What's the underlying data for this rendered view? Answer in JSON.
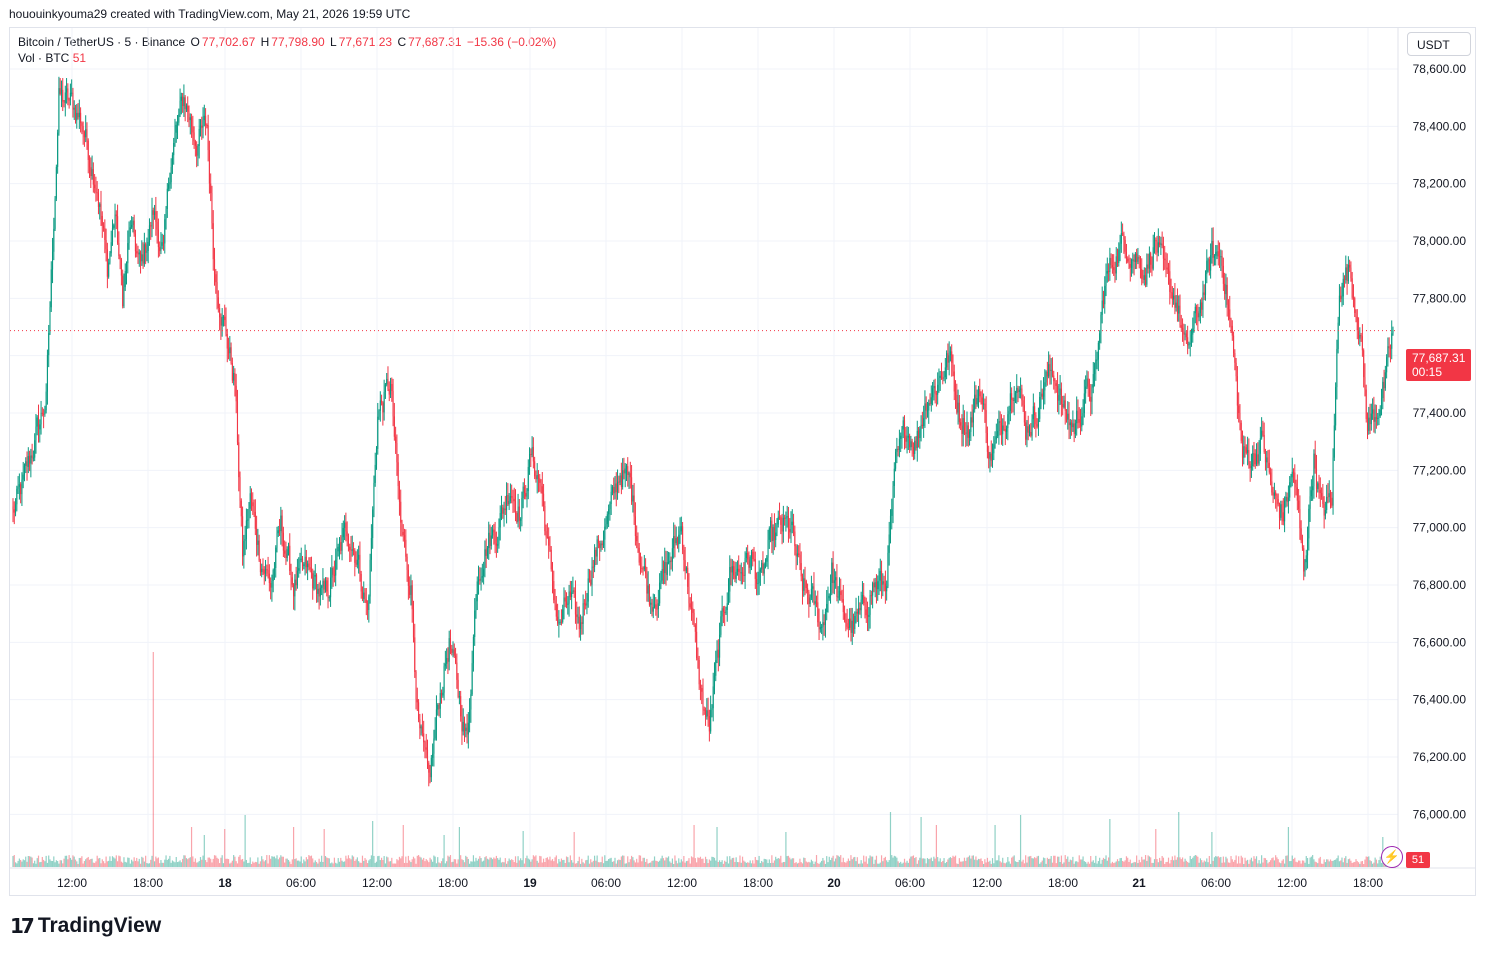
{
  "header": {
    "credit": "hououinkyouma29 created with TradingView.com, May 21, 2026 19:59 UTC"
  },
  "legend": {
    "symbol": "Bitcoin / TetherUS · 5 · Binance",
    "open_label": "O",
    "open": "77,702.67",
    "high_label": "H",
    "high": "77,798.90",
    "low_label": "L",
    "low": "77,671.23",
    "close_label": "C",
    "close": "77,687.31",
    "change": "−15.36 (−0.02%)",
    "volume_label": "Vol · BTC",
    "volume": "51"
  },
  "currency_button": "USDT",
  "last_price": {
    "value": "77,687.31",
    "countdown": "00:15",
    "volume_badge": "51"
  },
  "brand": "TradingView",
  "colors": {
    "up": "#089981",
    "down": "#f23645",
    "grid": "#f0f3fa",
    "text": "#131722"
  },
  "chart_data": {
    "type": "candlestick",
    "symbol": "BTCUSDT",
    "interval": "5",
    "ylim": [
      75900,
      78750
    ],
    "y_ticks": [
      76000,
      76200,
      76400,
      76600,
      76800,
      77000,
      77200,
      77400,
      77600,
      77800,
      78000,
      78200,
      78400,
      78600
    ],
    "y_tick_labels": [
      "76,000.00",
      "76,200.00",
      "76,400.00",
      "76,600.00",
      "76,800.00",
      "77,000.00",
      "77,200.00",
      "77,400.00",
      "77,600.00",
      "77,800.00",
      "78,000.00",
      "78,200.00",
      "78,400.00",
      "78,600.00"
    ],
    "x_tick_labels": [
      "12:00",
      "18:00",
      "18",
      "06:00",
      "12:00",
      "18:00",
      "19",
      "06:00",
      "12:00",
      "18:00",
      "20",
      "06:00",
      "12:00",
      "18:00",
      "21",
      "06:00",
      "12:00",
      "18:00"
    ],
    "bold_x_ticks": [
      "18",
      "19",
      "20",
      "21"
    ],
    "last_price": 77687.31,
    "price_path": [
      [
        0,
        77050
      ],
      [
        8,
        77150
      ],
      [
        14,
        77250
      ],
      [
        20,
        77350
      ],
      [
        26,
        77450
      ],
      [
        36,
        78500
      ],
      [
        46,
        78480
      ],
      [
        54,
        78420
      ],
      [
        60,
        78300
      ],
      [
        66,
        78200
      ],
      [
        74,
        77900
      ],
      [
        80,
        78100
      ],
      [
        86,
        77800
      ],
      [
        92,
        78050
      ],
      [
        100,
        77900
      ],
      [
        110,
        78100
      ],
      [
        118,
        77950
      ],
      [
        124,
        78300
      ],
      [
        134,
        78500
      ],
      [
        144,
        78350
      ],
      [
        152,
        78400
      ],
      [
        158,
        77900
      ],
      [
        166,
        77700
      ],
      [
        174,
        77500
      ],
      [
        180,
        76900
      ],
      [
        186,
        77100
      ],
      [
        194,
        76900
      ],
      [
        202,
        76800
      ],
      [
        210,
        77000
      ],
      [
        220,
        76800
      ],
      [
        230,
        76850
      ],
      [
        244,
        76750
      ],
      [
        252,
        76850
      ],
      [
        262,
        77000
      ],
      [
        270,
        76900
      ],
      [
        278,
        76700
      ],
      [
        286,
        77400
      ],
      [
        296,
        77500
      ],
      [
        304,
        77000
      ],
      [
        312,
        76800
      ],
      [
        318,
        76300
      ],
      [
        326,
        76100
      ],
      [
        334,
        76400
      ],
      [
        342,
        76600
      ],
      [
        350,
        76400
      ],
      [
        356,
        76250
      ],
      [
        364,
        76850
      ],
      [
        372,
        76950
      ],
      [
        380,
        77000
      ],
      [
        390,
        77150
      ],
      [
        398,
        77050
      ],
      [
        406,
        77250
      ],
      [
        414,
        77150
      ],
      [
        420,
        76900
      ],
      [
        428,
        76650
      ],
      [
        436,
        76750
      ],
      [
        444,
        76650
      ],
      [
        452,
        76850
      ],
      [
        460,
        76950
      ],
      [
        468,
        77050
      ],
      [
        476,
        77200
      ],
      [
        484,
        77150
      ],
      [
        492,
        76900
      ],
      [
        500,
        76750
      ],
      [
        508,
        76800
      ],
      [
        516,
        76900
      ],
      [
        524,
        77000
      ],
      [
        532,
        76700
      ],
      [
        540,
        76400
      ],
      [
        546,
        76300
      ],
      [
        554,
        76600
      ],
      [
        562,
        76850
      ],
      [
        570,
        76850
      ],
      [
        578,
        76900
      ],
      [
        586,
        76800
      ],
      [
        594,
        76950
      ],
      [
        602,
        77000
      ],
      [
        610,
        77000
      ],
      [
        618,
        76800
      ],
      [
        626,
        76750
      ],
      [
        634,
        76650
      ],
      [
        642,
        76850
      ],
      [
        650,
        76700
      ],
      [
        658,
        76650
      ],
      [
        666,
        76700
      ],
      [
        674,
        76800
      ],
      [
        684,
        76800
      ],
      [
        692,
        77200
      ],
      [
        700,
        77350
      ],
      [
        708,
        77300
      ],
      [
        716,
        77450
      ],
      [
        724,
        77500
      ],
      [
        734,
        77600
      ],
      [
        742,
        77400
      ],
      [
        750,
        77350
      ],
      [
        758,
        77500
      ],
      [
        766,
        77250
      ],
      [
        772,
        77300
      ],
      [
        778,
        77400
      ],
      [
        786,
        77550
      ],
      [
        794,
        77350
      ],
      [
        802,
        77400
      ],
      [
        808,
        77500
      ],
      [
        816,
        77550
      ],
      [
        824,
        77400
      ],
      [
        832,
        77350
      ],
      [
        840,
        77450
      ],
      [
        848,
        77500
      ],
      [
        856,
        77850
      ],
      [
        864,
        77950
      ],
      [
        872,
        78000
      ],
      [
        880,
        77950
      ],
      [
        888,
        77900
      ],
      [
        896,
        78000
      ],
      [
        904,
        77850
      ],
      [
        912,
        77800
      ],
      [
        920,
        77600
      ],
      [
        926,
        77700
      ],
      [
        932,
        77800
      ],
      [
        940,
        77950
      ],
      [
        948,
        77950
      ],
      [
        956,
        77650
      ],
      [
        964,
        77250
      ],
      [
        972,
        77250
      ],
      [
        980,
        77300
      ],
      [
        988,
        77100
      ],
      [
        996,
        77050
      ],
      [
        1004,
        77200
      ],
      [
        1012,
        76850
      ],
      [
        1020,
        77250
      ],
      [
        1026,
        77050
      ],
      [
        1034,
        77100
      ],
      [
        1040,
        77850
      ],
      [
        1048,
        77900
      ],
      [
        1056,
        77700
      ],
      [
        1062,
        77350
      ],
      [
        1068,
        77400
      ],
      [
        1076,
        77500
      ],
      [
        1082,
        77687.31
      ]
    ],
    "volume_spikes": [
      [
        110,
        215
      ],
      [
        140,
        40
      ],
      [
        150,
        32
      ],
      [
        166,
        38
      ],
      [
        182,
        52
      ],
      [
        220,
        40
      ],
      [
        244,
        38
      ],
      [
        282,
        46
      ],
      [
        306,
        42
      ],
      [
        338,
        32
      ],
      [
        350,
        40
      ],
      [
        400,
        36
      ],
      [
        440,
        35
      ],
      [
        534,
        42
      ],
      [
        552,
        40
      ],
      [
        606,
        35
      ],
      [
        688,
        55
      ],
      [
        712,
        50
      ],
      [
        724,
        42
      ],
      [
        770,
        42
      ],
      [
        790,
        52
      ],
      [
        860,
        48
      ],
      [
        896,
        38
      ],
      [
        914,
        55
      ],
      [
        940,
        35
      ],
      [
        1000,
        40
      ],
      [
        1074,
        30
      ]
    ]
  }
}
